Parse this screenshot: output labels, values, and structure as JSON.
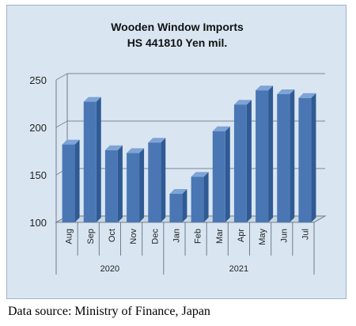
{
  "chart_data": {
    "type": "bar",
    "title": "Wooden Window Imports",
    "subtitle": "HS 441810 Yen mil.",
    "categories": [
      "Aug",
      "Sep",
      "Oct",
      "Nov",
      "Dec",
      "Jan",
      "Feb",
      "Mar",
      "Apr",
      "May",
      "Jun",
      "Jul"
    ],
    "groups": [
      {
        "label": "2020",
        "count": 5
      },
      {
        "label": "2021",
        "count": 7
      }
    ],
    "values": [
      182,
      227,
      176,
      173,
      184,
      130,
      148,
      196,
      224,
      239,
      235,
      231
    ],
    "ylim": [
      100,
      250
    ],
    "yticks": [
      100,
      150,
      200,
      250
    ],
    "grid": true,
    "bar_color": "#4a77b4",
    "background_color": "#d9e6f2"
  },
  "caption": "Data source: Ministry of Finance, Japan"
}
